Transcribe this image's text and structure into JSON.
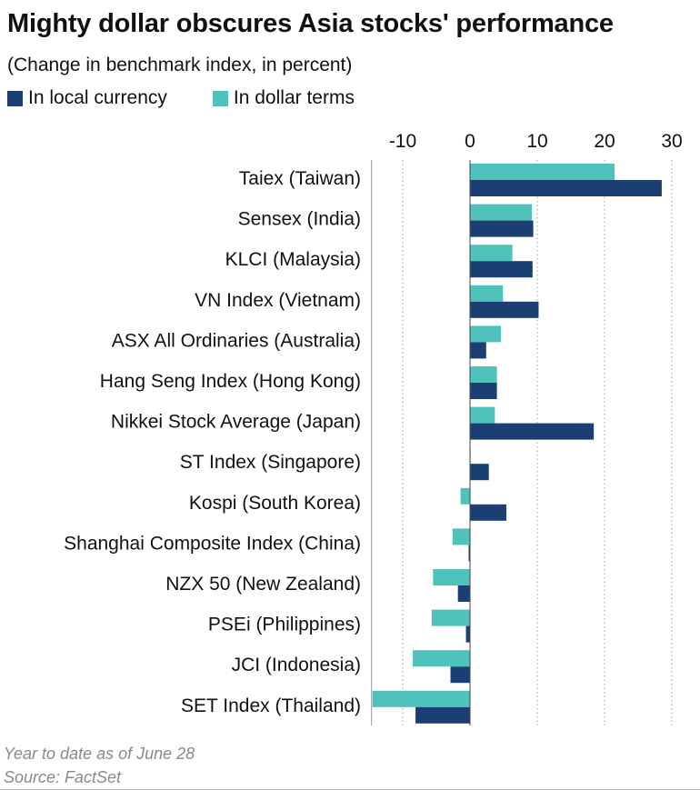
{
  "title": "Mighty dollar obscures Asia stocks' performance",
  "subtitle": "(Change in benchmark index, in percent)",
  "legend": [
    {
      "label": "In local currency",
      "color": "#1b3f73"
    },
    {
      "label": "In dollar terms",
      "color": "#4fc2bb"
    }
  ],
  "footnote": "Year to date as of June 28",
  "source": "Source: FactSet",
  "chart_data": {
    "type": "bar",
    "orientation": "horizontal",
    "xlim": [
      -14.5,
      31
    ],
    "xticks": [
      -10,
      0,
      10,
      20,
      30
    ],
    "grid": "vertical dotted",
    "legend_position": "top-left",
    "categories": [
      "Taiex (Taiwan)",
      "Sensex (India)",
      "KLCI (Malaysia)",
      "VN Index (Vietnam)",
      "ASX All Ordinaries (Australia)",
      "Hang Seng Index (Hong Kong)",
      "Nikkei Stock Average (Japan)",
      "ST Index (Singapore)",
      "Kospi (South Korea)",
      "Shanghai Composite Index (China)",
      "NZX 50 (New Zealand)",
      "PSEi (Philippines)",
      "JCI (Indonesia)",
      "SET Index (Thailand)"
    ],
    "series": [
      {
        "name": "In dollar terms",
        "color": "#4fc2bb",
        "values": [
          21.5,
          9.2,
          6.3,
          4.9,
          4.6,
          4.0,
          3.7,
          0.1,
          -1.4,
          -2.6,
          -5.5,
          -5.7,
          -8.5,
          -14.5
        ]
      },
      {
        "name": "In local currency",
        "color": "#1b3f73",
        "values": [
          28.5,
          9.4,
          9.3,
          10.2,
          2.4,
          4.0,
          18.4,
          2.8,
          5.4,
          -0.2,
          -1.8,
          -0.6,
          -2.9,
          -8.1
        ]
      }
    ]
  }
}
